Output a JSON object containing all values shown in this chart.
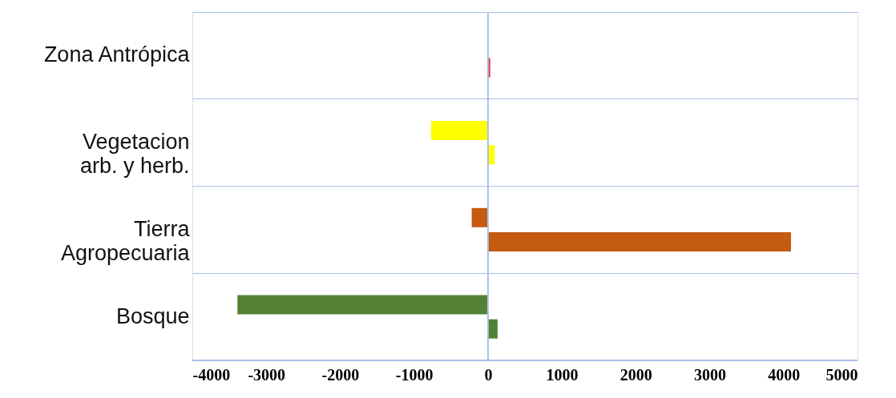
{
  "chart_data": {
    "type": "bar",
    "orientation": "horizontal",
    "categories": [
      "Zona Antrópica",
      "Vegetacion\narb. y herb.",
      "Tierra\nAgropecuaria",
      "Bosque"
    ],
    "series": [
      {
        "colors": [
          "#e8303a",
          "#ffff00",
          "#c55a11",
          "#548235"
        ],
        "values": [
          null,
          -770,
          -220,
          -3390
        ]
      },
      {
        "colors": [
          "#e8303a",
          "#ffff00",
          "#c55a11",
          "#548235"
        ],
        "values": [
          30,
          90,
          4100,
          130
        ]
      }
    ],
    "xlim": [
      -4000,
      5000
    ],
    "xticks": [
      -4000,
      -3000,
      -2000,
      -1000,
      0,
      1000,
      2000,
      3000,
      4000,
      5000
    ],
    "grid": "y",
    "ref_lines": [
      {
        "axis": "x",
        "value": 0,
        "color": "#a9bfe6"
      }
    ]
  }
}
